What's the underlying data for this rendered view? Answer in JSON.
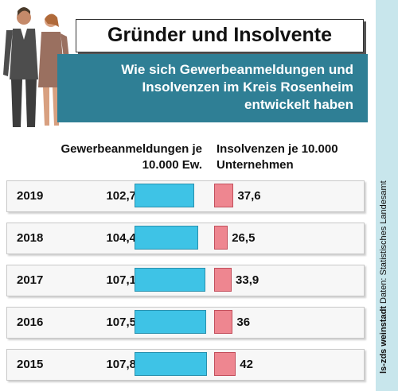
{
  "header": {
    "title": "Gründer und Insolvente",
    "subtitle_lines": [
      "Wie sich Gewerbeanmeldungen und",
      "Insolvenzen im Kreis Rosenheim",
      "entwickelt haben"
    ]
  },
  "columns": {
    "left_header_lines": [
      "Gewerbeanmeldungen je",
      "10.000 Ew."
    ],
    "right_header_lines": [
      "Insolvenzen je 10.000",
      "Unternehmen"
    ]
  },
  "source": {
    "credit": "ls-zds weinstadt",
    "text": "Daten: Statistisches Landesamt"
  },
  "colors": {
    "accent": "#2f7f95",
    "left_bar": "#3ec3e6",
    "right_bar": "#ee8690"
  },
  "chart_data": {
    "type": "bar",
    "categories": [
      "2019",
      "2018",
      "2017",
      "2016",
      "2015"
    ],
    "series": [
      {
        "name": "Gewerbeanmeldungen je 10.000 Ew.",
        "values": [
          102.7,
          104.4,
          107.1,
          107.5,
          107.8
        ],
        "labels": [
          "102,7",
          "104,4",
          "107,1",
          "107,5",
          "107,8"
        ]
      },
      {
        "name": "Insolvenzen je 10.000 Unternehmen",
        "values": [
          37.6,
          26.5,
          33.9,
          36,
          42
        ],
        "labels": [
          "37,6",
          "26,5",
          "33,9",
          "36",
          "42"
        ]
      }
    ]
  }
}
